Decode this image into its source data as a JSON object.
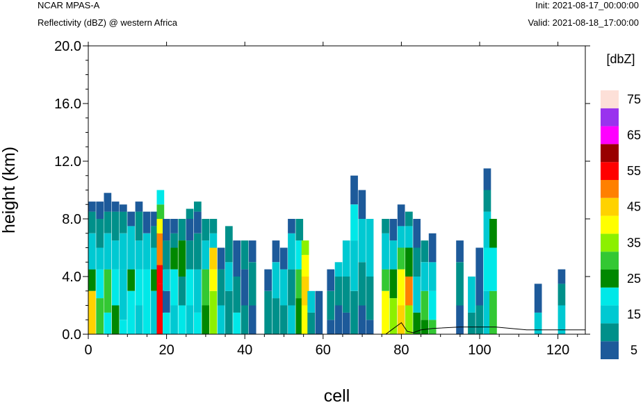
{
  "header": {
    "model": "NCAR MPAS-A",
    "field": "Reflectivity (dBZ) @ western Africa",
    "init": "Init: 2021-08-17_00:00:00",
    "valid": "Valid: 2021-08-18_17:00:00"
  },
  "chart_data": {
    "type": "heatmap",
    "xlabel": "cell",
    "ylabel": "height (km)",
    "xlim": [
      0,
      127
    ],
    "ylim": [
      0,
      20
    ],
    "x_ticks": [
      0,
      20,
      40,
      60,
      80,
      100,
      120
    ],
    "x_tick_labels": [
      "0",
      "20",
      "40",
      "60",
      "80",
      "100",
      "120"
    ],
    "y_ticks": [
      0,
      4,
      8,
      12,
      16,
      20
    ],
    "y_tick_labels": [
      "0.0",
      "4.0",
      "8.0",
      "12.0",
      "16.0",
      "20.0"
    ],
    "colorbar": {
      "title": "[dbZ]",
      "levels": [
        5,
        10,
        15,
        20,
        25,
        30,
        35,
        40,
        45,
        50,
        55,
        60,
        65,
        70,
        75
      ],
      "labels": [
        "5",
        "15",
        "25",
        "35",
        "45",
        "55",
        "65",
        "75"
      ],
      "colors": [
        "#1d5a9a",
        "#00908a",
        "#00c9d2",
        "#00e8e8",
        "#008800",
        "#33c833",
        "#8cf000",
        "#ffff00",
        "#ffd200",
        "#ff8000",
        "#ff0000",
        "#990000",
        "#ff00ff",
        "#9933ee",
        "#fde0d8"
      ]
    },
    "columns": [
      {
        "x": 0,
        "top": 8.5,
        "profile": [
          [
            0,
            3,
            8
          ],
          [
            3,
            4.5,
            4
          ],
          [
            4.5,
            7,
            2
          ],
          [
            7,
            8.5,
            1
          ],
          [
            8.5,
            9.2,
            0
          ]
        ]
      },
      {
        "x": 2,
        "top": 9.2,
        "profile": [
          [
            0,
            2.5,
            5
          ],
          [
            2.5,
            4.5,
            3
          ],
          [
            4.5,
            6,
            2
          ],
          [
            6,
            8,
            1
          ],
          [
            8,
            9.2,
            0
          ]
        ]
      },
      {
        "x": 4,
        "top": 9.8,
        "profile": [
          [
            0,
            1.5,
            3
          ],
          [
            1.5,
            4.5,
            5
          ],
          [
            4.5,
            7,
            2
          ],
          [
            7,
            8.5,
            1
          ],
          [
            8.5,
            9.8,
            0
          ]
        ]
      },
      {
        "x": 6,
        "top": 9.2,
        "profile": [
          [
            0,
            2,
            4
          ],
          [
            2,
            4.5,
            3
          ],
          [
            4.5,
            6.5,
            2
          ],
          [
            6.5,
            8.5,
            1
          ],
          [
            8.5,
            9.2,
            0
          ]
        ]
      },
      {
        "x": 8,
        "top": 9.0,
        "profile": [
          [
            0,
            1,
            3
          ],
          [
            1,
            4.5,
            2
          ],
          [
            4.5,
            7,
            2
          ],
          [
            7,
            8.5,
            1
          ],
          [
            8.5,
            9,
            0
          ]
        ]
      },
      {
        "x": 10,
        "top": 8.5,
        "profile": [
          [
            0,
            3,
            3
          ],
          [
            3,
            4.5,
            4
          ],
          [
            4.5,
            7.5,
            2
          ],
          [
            7.5,
            8.5,
            0
          ]
        ]
      },
      {
        "x": 12,
        "top": 9.2,
        "profile": [
          [
            0,
            2,
            2
          ],
          [
            2,
            4.5,
            3
          ],
          [
            4.5,
            6.5,
            2
          ],
          [
            6.5,
            8.5,
            1
          ],
          [
            8.5,
            9.2,
            0
          ]
        ]
      },
      {
        "x": 14,
        "top": 8.5,
        "profile": [
          [
            0,
            4.5,
            3
          ],
          [
            4.5,
            7,
            2
          ],
          [
            7,
            8.5,
            0
          ]
        ]
      },
      {
        "x": 16,
        "top": 8.5,
        "profile": [
          [
            0,
            3,
            2
          ],
          [
            3,
            4.5,
            4
          ],
          [
            4.5,
            6,
            2
          ],
          [
            6,
            7.5,
            1
          ],
          [
            7.5,
            8.5,
            0
          ]
        ]
      },
      {
        "x": 17.5,
        "top": 10,
        "profile": [
          [
            0,
            3.5,
            10
          ],
          [
            3.5,
            4.8,
            10
          ],
          [
            4.8,
            7,
            9
          ],
          [
            7,
            8,
            7
          ],
          [
            8,
            9,
            5
          ],
          [
            9,
            10,
            3
          ]
        ]
      },
      {
        "x": 19,
        "top": 8.0,
        "profile": [
          [
            0,
            1.5,
            3
          ],
          [
            1.5,
            3,
            0
          ],
          [
            3,
            4.5,
            2
          ],
          [
            4.5,
            6.5,
            1
          ],
          [
            6.5,
            8,
            0
          ]
        ]
      },
      {
        "x": 21,
        "top": 8.0,
        "profile": [
          [
            0,
            2,
            2
          ],
          [
            2,
            4.5,
            3
          ],
          [
            4.5,
            6,
            4
          ],
          [
            6,
            7,
            1
          ],
          [
            7,
            8,
            0
          ]
        ]
      },
      {
        "x": 23,
        "top": 8.0,
        "profile": [
          [
            0,
            2,
            3
          ],
          [
            2,
            4,
            1
          ],
          [
            4,
            6.5,
            4
          ],
          [
            6.5,
            8,
            1
          ]
        ]
      },
      {
        "x": 25,
        "top": 8.7,
        "profile": [
          [
            0,
            2,
            2
          ],
          [
            2,
            4.5,
            3
          ],
          [
            4.5,
            6.5,
            1
          ],
          [
            6.5,
            8,
            0
          ],
          [
            8,
            8.7,
            1
          ]
        ]
      },
      {
        "x": 27,
        "top": 9.2,
        "profile": [
          [
            0,
            1.5,
            3
          ],
          [
            1.5,
            4.5,
            2
          ],
          [
            4.5,
            7,
            1
          ],
          [
            7,
            8.5,
            0
          ],
          [
            8.5,
            9.2,
            1
          ]
        ]
      },
      {
        "x": 29,
        "top": 8.0,
        "profile": [
          [
            0,
            2,
            4
          ],
          [
            2,
            4.5,
            5
          ],
          [
            4.5,
            6.5,
            2
          ],
          [
            6.5,
            8,
            1
          ]
        ]
      },
      {
        "x": 31,
        "top": 8.0,
        "profile": [
          [
            0,
            3,
            6
          ],
          [
            3,
            4.5,
            7
          ],
          [
            4.5,
            6,
            8
          ],
          [
            6,
            7,
            2
          ],
          [
            7,
            8,
            1
          ]
        ]
      },
      {
        "x": 33,
        "top": 6.0,
        "profile": [
          [
            0,
            2,
            2
          ],
          [
            2,
            4.5,
            1
          ],
          [
            4.5,
            6,
            0
          ]
        ]
      },
      {
        "x": 35,
        "top": 7.5,
        "profile": [
          [
            0,
            3,
            1
          ],
          [
            3,
            5,
            2
          ],
          [
            5,
            7.5,
            1
          ]
        ]
      },
      {
        "x": 37,
        "top": 6.5,
        "profile": [
          [
            0,
            1.5,
            3
          ],
          [
            1.5,
            4,
            1
          ],
          [
            4,
            6.5,
            0
          ]
        ]
      },
      {
        "x": 39,
        "top": 6.5,
        "profile": [
          [
            0,
            2,
            1
          ],
          [
            2,
            4.5,
            0
          ],
          [
            4.5,
            6.5,
            1
          ]
        ]
      },
      {
        "x": 41,
        "top": 6.5,
        "profile": [
          [
            0,
            2,
            0
          ],
          [
            2,
            5,
            1
          ],
          [
            5,
            6.5,
            0
          ]
        ]
      },
      {
        "x": 45,
        "top": 4.5,
        "profile": [
          [
            0,
            3,
            1
          ],
          [
            3,
            4.5,
            0
          ]
        ]
      },
      {
        "x": 47,
        "top": 6.5,
        "profile": [
          [
            0,
            2.5,
            1
          ],
          [
            2.5,
            5,
            2
          ],
          [
            5,
            6.5,
            0
          ]
        ]
      },
      {
        "x": 49,
        "top": 6.0,
        "profile": [
          [
            0,
            2,
            1
          ],
          [
            2,
            4.5,
            2
          ],
          [
            4.5,
            6,
            0
          ]
        ]
      },
      {
        "x": 51,
        "top": 8.0,
        "profile": [
          [
            0,
            2,
            2
          ],
          [
            2,
            4.5,
            1
          ],
          [
            4.5,
            7,
            2
          ],
          [
            7,
            8,
            0
          ]
        ]
      },
      {
        "x": 53,
        "top": 8.0,
        "profile": [
          [
            0,
            2.5,
            4
          ],
          [
            2.5,
            4.5,
            5
          ],
          [
            4.5,
            6.5,
            3
          ],
          [
            6.5,
            8,
            1
          ]
        ]
      },
      {
        "x": 54.5,
        "top": 6.5,
        "profile": [
          [
            0,
            2,
            7
          ],
          [
            2,
            4,
            8
          ],
          [
            4,
            5.5,
            7
          ],
          [
            5.5,
            6.5,
            6
          ]
        ]
      },
      {
        "x": 56,
        "top": 3.0,
        "profile": [
          [
            0,
            1.5,
            1
          ],
          [
            1.5,
            3,
            2
          ]
        ]
      },
      {
        "x": 58,
        "top": 3.0,
        "profile": [
          [
            0,
            3,
            0
          ]
        ]
      },
      {
        "x": 61,
        "top": 4.5,
        "profile": [
          [
            0,
            1,
            0
          ],
          [
            1,
            3,
            1
          ],
          [
            3,
            4.5,
            0
          ]
        ]
      },
      {
        "x": 63,
        "top": 5.0,
        "profile": [
          [
            0,
            2,
            0
          ],
          [
            2,
            4,
            1
          ],
          [
            4,
            5,
            2
          ]
        ]
      },
      {
        "x": 65,
        "top": 6.5,
        "profile": [
          [
            0,
            1.5,
            0
          ],
          [
            1.5,
            4,
            1
          ],
          [
            4,
            6.5,
            2
          ]
        ]
      },
      {
        "x": 67,
        "top": 11.0,
        "profile": [
          [
            0,
            3,
            1
          ],
          [
            3,
            6.5,
            2
          ],
          [
            6.5,
            9,
            3
          ],
          [
            9,
            11,
            0
          ]
        ]
      },
      {
        "x": 69,
        "top": 10.0,
        "profile": [
          [
            0,
            2,
            0
          ],
          [
            2,
            5,
            1
          ],
          [
            5,
            8,
            2
          ],
          [
            8,
            10,
            0
          ]
        ]
      },
      {
        "x": 71,
        "top": 8.0,
        "profile": [
          [
            0,
            1,
            0
          ],
          [
            1,
            4,
            1
          ],
          [
            4,
            8,
            2
          ]
        ]
      },
      {
        "x": 75,
        "top": 8.0,
        "profile": [
          [
            0,
            3,
            7
          ],
          [
            3,
            4.5,
            5
          ],
          [
            4.5,
            7,
            2
          ],
          [
            7,
            8,
            1
          ]
        ]
      },
      {
        "x": 77,
        "top": 8.0,
        "profile": [
          [
            0,
            2.5,
            6
          ],
          [
            2.5,
            4.5,
            4
          ],
          [
            4.5,
            6.5,
            2
          ],
          [
            6.5,
            8,
            0
          ]
        ]
      },
      {
        "x": 79,
        "top": 9.0,
        "profile": [
          [
            0,
            2,
            8
          ],
          [
            2,
            4.5,
            7
          ],
          [
            4.5,
            6,
            5
          ],
          [
            6,
            7.5,
            2
          ],
          [
            7.5,
            9,
            0
          ]
        ]
      },
      {
        "x": 81,
        "top": 8.5,
        "profile": [
          [
            0,
            2,
            6
          ],
          [
            2,
            4,
            9
          ],
          [
            4,
            6,
            4
          ],
          [
            6,
            7.5,
            2
          ],
          [
            7.5,
            8.5,
            1
          ]
        ]
      },
      {
        "x": 83,
        "top": 8.0,
        "profile": [
          [
            0,
            1.5,
            4
          ],
          [
            1.5,
            4,
            2
          ],
          [
            4,
            6,
            1
          ],
          [
            6,
            8,
            0
          ]
        ]
      },
      {
        "x": 85,
        "top": 6.5,
        "profile": [
          [
            0,
            1,
            4
          ],
          [
            1,
            3,
            5
          ],
          [
            3,
            5,
            2
          ],
          [
            5,
            6.5,
            1
          ]
        ]
      },
      {
        "x": 87,
        "top": 7.0,
        "profile": [
          [
            0,
            1,
            5
          ],
          [
            1,
            3,
            3
          ],
          [
            3,
            5,
            2
          ],
          [
            5,
            7,
            0
          ]
        ]
      },
      {
        "x": 94,
        "top": 6.5,
        "profile": [
          [
            0,
            2,
            0
          ],
          [
            2,
            5,
            1
          ],
          [
            5,
            6.5,
            0
          ]
        ]
      },
      {
        "x": 97,
        "top": 4.0,
        "profile": [
          [
            0,
            1.5,
            1
          ],
          [
            1.5,
            4,
            2
          ]
        ]
      },
      {
        "x": 99,
        "top": 6.0,
        "profile": [
          [
            0,
            2,
            1
          ],
          [
            2,
            6,
            0
          ]
        ]
      },
      {
        "x": 101,
        "top": 11.5,
        "profile": [
          [
            0,
            3,
            2
          ],
          [
            3,
            6,
            3
          ],
          [
            6,
            8.5,
            2
          ],
          [
            8.5,
            10,
            1
          ],
          [
            10,
            11.5,
            0
          ]
        ]
      },
      {
        "x": 102.5,
        "top": 8.0,
        "profile": [
          [
            0,
            3,
            5
          ],
          [
            3,
            6,
            3
          ],
          [
            6,
            8,
            4
          ]
        ]
      },
      {
        "x": 114,
        "top": 3.5,
        "profile": [
          [
            0,
            1.5,
            2
          ],
          [
            1.5,
            3.5,
            0
          ]
        ]
      },
      {
        "x": 120,
        "top": 4.5,
        "profile": [
          [
            0,
            2,
            2
          ],
          [
            2,
            3.5,
            1
          ],
          [
            3.5,
            4.5,
            0
          ]
        ]
      }
    ],
    "terrain": [
      [
        0,
        0
      ],
      [
        76,
        0
      ],
      [
        78,
        0.4
      ],
      [
        80,
        0.8
      ],
      [
        81.5,
        0.2
      ],
      [
        83,
        0.1
      ],
      [
        85,
        0.3
      ],
      [
        88,
        0.4
      ],
      [
        95,
        0.5
      ],
      [
        104,
        0.5
      ],
      [
        112,
        0.3
      ],
      [
        120,
        0.3
      ],
      [
        127,
        0.3
      ]
    ]
  }
}
